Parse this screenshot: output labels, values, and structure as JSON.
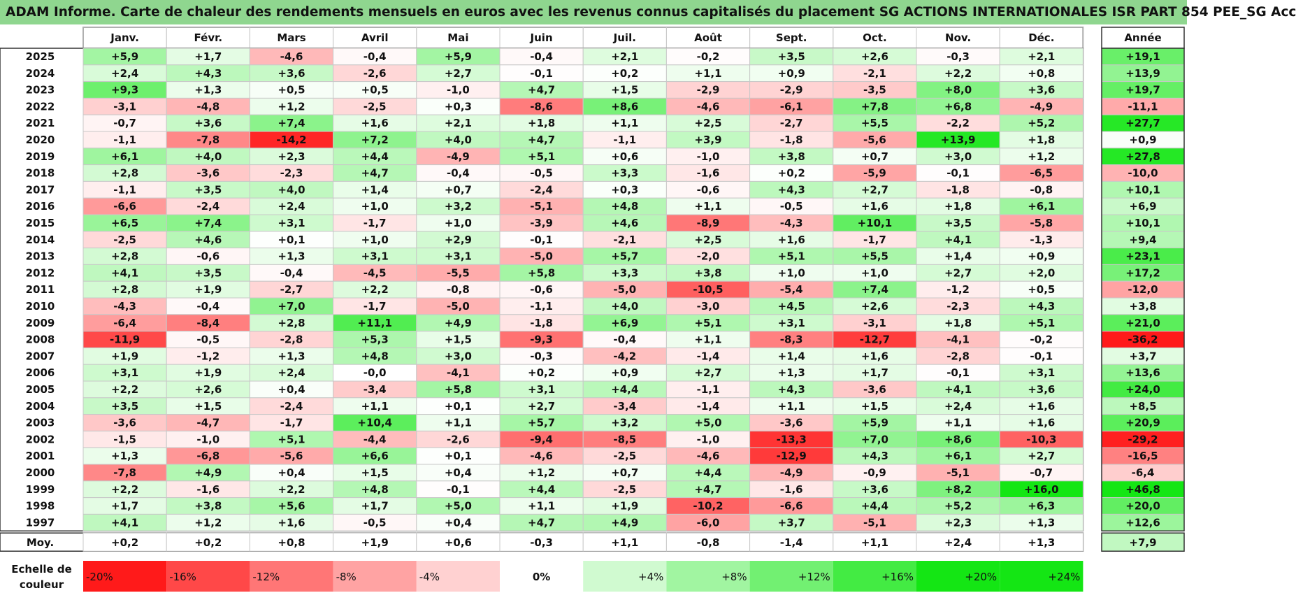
{
  "title": "ADAM Informe. Carte de chaleur des rendements mensuels en euros avec les revenus connus capitalisés du placement SG ACTIONS INTERNATIONALES ISR PART 854 PEE_SG Acc",
  "chart_data": {
    "type": "heatmap",
    "title": "ADAM Informe. Carte de chaleur des rendements mensuels en euros avec les revenus connus capitalisés du placement SG ACTIONS INTERNATIONALES ISR PART 854 PEE_SG Acc",
    "columns": [
      "Janv.",
      "Févr.",
      "Mars",
      "Avril",
      "Mai",
      "Juin",
      "Juil.",
      "Août",
      "Sept.",
      "Oct.",
      "Nov.",
      "Déc."
    ],
    "annual_header": "Année",
    "rows": [
      {
        "year": "2025",
        "monthly": [
          "+5,9",
          "+1,7",
          "-4,6",
          "-0,4",
          "+5,9",
          "-0,4",
          "+2,1",
          "-0,2",
          "+3,5",
          "+2,6",
          "-0,3",
          "+2,1"
        ],
        "annual": "+19,1"
      },
      {
        "year": "2024",
        "monthly": [
          "+2,4",
          "+4,3",
          "+3,6",
          "-2,6",
          "+2,7",
          "-0,1",
          "+0,2",
          "+1,1",
          "+0,9",
          "-2,1",
          "+2,2",
          "+0,8"
        ],
        "annual": "+13,9"
      },
      {
        "year": "2023",
        "monthly": [
          "+9,3",
          "+1,3",
          "+0,5",
          "+0,5",
          "-1,0",
          "+4,7",
          "+1,5",
          "-2,9",
          "-2,9",
          "-3,5",
          "+8,0",
          "+3,6"
        ],
        "annual": "+19,7"
      },
      {
        "year": "2022",
        "monthly": [
          "-3,1",
          "-4,8",
          "+1,2",
          "-2,5",
          "+0,3",
          "-8,6",
          "+8,6",
          "-4,6",
          "-6,1",
          "+7,8",
          "+6,8",
          "-4,9"
        ],
        "annual": "-11,1"
      },
      {
        "year": "2021",
        "monthly": [
          "-0,7",
          "+3,6",
          "+7,4",
          "+1,6",
          "+2,1",
          "+1,8",
          "+1,1",
          "+2,5",
          "-2,7",
          "+5,5",
          "-2,2",
          "+5,2"
        ],
        "annual": "+27,7"
      },
      {
        "year": "2020",
        "monthly": [
          "-1,1",
          "-7,8",
          "-14,2",
          "+7,2",
          "+4,0",
          "+4,7",
          "-1,1",
          "+3,9",
          "-1,8",
          "-5,6",
          "+13,9",
          "+1,8"
        ],
        "annual": "+0,9"
      },
      {
        "year": "2019",
        "monthly": [
          "+6,1",
          "+4,0",
          "+2,3",
          "+4,4",
          "-4,9",
          "+5,1",
          "+0,6",
          "-1,0",
          "+3,8",
          "+0,7",
          "+3,0",
          "+1,2"
        ],
        "annual": "+27,8"
      },
      {
        "year": "2018",
        "monthly": [
          "+2,8",
          "-3,6",
          "-2,3",
          "+4,7",
          "-0,4",
          "-0,5",
          "+3,3",
          "-1,6",
          "+0,2",
          "-5,9",
          "-0,1",
          "-6,5"
        ],
        "annual": "-10,0"
      },
      {
        "year": "2017",
        "monthly": [
          "-1,1",
          "+3,5",
          "+4,0",
          "+1,4",
          "+0,7",
          "-2,4",
          "+0,3",
          "-0,6",
          "+4,3",
          "+2,7",
          "-1,8",
          "-0,8"
        ],
        "annual": "+10,1"
      },
      {
        "year": "2016",
        "monthly": [
          "-6,6",
          "-2,4",
          "+2,4",
          "+1,0",
          "+3,2",
          "-5,1",
          "+4,8",
          "+1,1",
          "-0,5",
          "+1,6",
          "+1,8",
          "+6,1"
        ],
        "annual": "+6,9"
      },
      {
        "year": "2015",
        "monthly": [
          "+6,5",
          "+7,4",
          "+3,1",
          "-1,7",
          "+1,0",
          "-3,9",
          "+4,6",
          "-8,9",
          "-4,3",
          "+10,1",
          "+3,5",
          "-5,8"
        ],
        "annual": "+10,1"
      },
      {
        "year": "2014",
        "monthly": [
          "-2,5",
          "+4,6",
          "+0,1",
          "+1,0",
          "+2,9",
          "-0,1",
          "-2,1",
          "+2,5",
          "+1,6",
          "-1,7",
          "+4,1",
          "-1,3"
        ],
        "annual": "+9,4"
      },
      {
        "year": "2013",
        "monthly": [
          "+2,8",
          "-0,6",
          "+1,3",
          "+3,1",
          "+3,1",
          "-5,0",
          "+5,7",
          "-2,0",
          "+5,1",
          "+5,5",
          "+1,4",
          "+0,9"
        ],
        "annual": "+23,1"
      },
      {
        "year": "2012",
        "monthly": [
          "+4,1",
          "+3,5",
          "-0,4",
          "-4,5",
          "-5,5",
          "+5,8",
          "+3,3",
          "+3,8",
          "+1,0",
          "+1,0",
          "+2,7",
          "+2,0"
        ],
        "annual": "+17,2"
      },
      {
        "year": "2011",
        "monthly": [
          "+2,8",
          "+1,9",
          "-2,7",
          "+2,2",
          "-0,8",
          "-0,6",
          "-5,0",
          "-10,5",
          "-5,4",
          "+7,4",
          "-1,2",
          "+0,5"
        ],
        "annual": "-12,0"
      },
      {
        "year": "2010",
        "monthly": [
          "-4,3",
          "-0,4",
          "+7,0",
          "-1,7",
          "-5,0",
          "-1,1",
          "+4,0",
          "-3,0",
          "+4,5",
          "+2,6",
          "-2,3",
          "+4,3"
        ],
        "annual": "+3,8"
      },
      {
        "year": "2009",
        "monthly": [
          "-6,4",
          "-8,4",
          "+2,8",
          "+11,1",
          "+4,9",
          "-1,8",
          "+6,9",
          "+5,1",
          "+3,1",
          "-3,1",
          "+1,8",
          "+5,1"
        ],
        "annual": "+21,0"
      },
      {
        "year": "2008",
        "monthly": [
          "-11,9",
          "-0,5",
          "-2,8",
          "+5,3",
          "+1,5",
          "-9,3",
          "-0,4",
          "+1,1",
          "-8,3",
          "-12,7",
          "-4,1",
          "-0,2"
        ],
        "annual": "-36,2"
      },
      {
        "year": "2007",
        "monthly": [
          "+1,9",
          "-1,2",
          "+1,3",
          "+4,8",
          "+3,0",
          "-0,3",
          "-4,2",
          "-1,4",
          "+1,4",
          "+1,6",
          "-2,8",
          "-0,1"
        ],
        "annual": "+3,7"
      },
      {
        "year": "2006",
        "monthly": [
          "+3,1",
          "+1,9",
          "+2,4",
          "-0,0",
          "-4,1",
          "+0,2",
          "+0,9",
          "+2,7",
          "+1,3",
          "+1,7",
          "-0,1",
          "+3,1"
        ],
        "annual": "+13,6"
      },
      {
        "year": "2005",
        "monthly": [
          "+2,2",
          "+2,6",
          "+0,4",
          "-3,4",
          "+5,8",
          "+3,1",
          "+4,4",
          "-1,1",
          "+4,3",
          "-3,6",
          "+4,1",
          "+3,6"
        ],
        "annual": "+24,0"
      },
      {
        "year": "2004",
        "monthly": [
          "+3,5",
          "+1,5",
          "-2,4",
          "+1,1",
          "+0,1",
          "+2,7",
          "-3,4",
          "-1,4",
          "+1,1",
          "+1,5",
          "+2,4",
          "+1,6"
        ],
        "annual": "+8,5"
      },
      {
        "year": "2003",
        "monthly": [
          "-3,6",
          "-4,7",
          "-1,7",
          "+10,4",
          "+1,1",
          "+5,7",
          "+3,2",
          "+5,0",
          "-3,6",
          "+5,9",
          "+1,1",
          "+1,6"
        ],
        "annual": "+20,9"
      },
      {
        "year": "2002",
        "monthly": [
          "-1,5",
          "-1,0",
          "+5,1",
          "-4,4",
          "-2,6",
          "-9,4",
          "-8,5",
          "-1,0",
          "-13,3",
          "+7,0",
          "+8,6",
          "-10,3"
        ],
        "annual": "-29,2"
      },
      {
        "year": "2001",
        "monthly": [
          "+1,3",
          "-6,8",
          "-5,6",
          "+6,6",
          "+0,1",
          "-4,6",
          "-2,5",
          "-4,6",
          "-12,9",
          "+4,3",
          "+6,1",
          "+2,7"
        ],
        "annual": "-16,5"
      },
      {
        "year": "2000",
        "monthly": [
          "-7,8",
          "+4,9",
          "+0,4",
          "+1,5",
          "+0,4",
          "+1,2",
          "+0,7",
          "+4,4",
          "-4,9",
          "-0,9",
          "-5,1",
          "-0,7"
        ],
        "annual": "-6,4"
      },
      {
        "year": "1999",
        "monthly": [
          "+2,2",
          "-1,6",
          "+2,2",
          "+4,8",
          "-0,1",
          "+4,4",
          "-2,5",
          "+4,7",
          "-1,6",
          "+3,6",
          "+8,2",
          "+16,0"
        ],
        "annual": "+46,8"
      },
      {
        "year": "1998",
        "monthly": [
          "+1,7",
          "+3,8",
          "+5,6",
          "+1,7",
          "+5,0",
          "+1,1",
          "+1,9",
          "-10,2",
          "-6,6",
          "+4,4",
          "+5,2",
          "+6,3"
        ],
        "annual": "+20,0"
      },
      {
        "year": "1997",
        "monthly": [
          "+4,1",
          "+1,2",
          "+1,6",
          "-0,5",
          "+0,4",
          "+4,7",
          "+4,9",
          "-6,0",
          "+3,7",
          "-5,1",
          "+2,3",
          "+1,3"
        ],
        "annual": "+12,6"
      }
    ],
    "average": {
      "label": "Moy.",
      "monthly": [
        "+0,2",
        "+0,2",
        "+0,8",
        "+1,9",
        "+0,6",
        "-0,3",
        "+1,1",
        "-0,8",
        "-1,4",
        "+1,1",
        "+2,4",
        "+1,3"
      ],
      "annual": "+7,9"
    },
    "scale": {
      "label_line1": "Echelle de",
      "label_line2": "couleur",
      "stops": [
        "-20%",
        "-16%",
        "-12%",
        "-8%",
        "-4%",
        "0%",
        "+4%",
        "+8%",
        "+12%",
        "+16%",
        "+20%",
        "+24%"
      ]
    },
    "colors": {
      "title_bg": "#8fd68f",
      "neg_max": "#ff1a1a",
      "zero": "#ffffff",
      "pos_max": "#14e614",
      "grid": "#c8c8c8",
      "border": "#333333"
    }
  }
}
